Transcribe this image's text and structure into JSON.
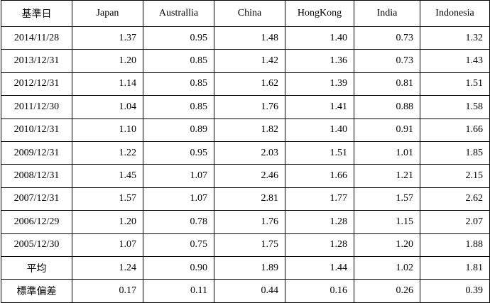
{
  "table": {
    "header": [
      "基準日",
      "Japan",
      "Australlia",
      "China",
      "HongKong",
      "India",
      "Indonesia"
    ],
    "rows": [
      [
        "2014/11/28",
        "1.37",
        "0.95",
        "1.48",
        "1.40",
        "0.73",
        "1.32"
      ],
      [
        "2013/12/31",
        "1.20",
        "0.85",
        "1.42",
        "1.36",
        "0.73",
        "1.43"
      ],
      [
        "2012/12/31",
        "1.14",
        "0.85",
        "1.62",
        "1.39",
        "0.81",
        "1.51"
      ],
      [
        "2011/12/30",
        "1.04",
        "0.85",
        "1.76",
        "1.41",
        "0.88",
        "1.58"
      ],
      [
        "2010/12/31",
        "1.10",
        "0.89",
        "1.82",
        "1.40",
        "0.91",
        "1.66"
      ],
      [
        "2009/12/31",
        "1.22",
        "0.95",
        "2.03",
        "1.51",
        "1.01",
        "1.85"
      ],
      [
        "2008/12/31",
        "1.45",
        "1.07",
        "2.46",
        "1.66",
        "1.21",
        "2.15"
      ],
      [
        "2007/12/31",
        "1.57",
        "1.07",
        "2.81",
        "1.77",
        "1.57",
        "2.62"
      ],
      [
        "2006/12/29",
        "1.20",
        "0.78",
        "1.76",
        "1.28",
        "1.15",
        "2.07"
      ],
      [
        "2005/12/30",
        "1.07",
        "0.75",
        "1.75",
        "1.28",
        "1.20",
        "1.88"
      ],
      [
        "平均",
        "1.24",
        "0.90",
        "1.89",
        "1.44",
        "1.02",
        "1.81"
      ],
      [
        "標準偏差",
        "0.17",
        "0.11",
        "0.44",
        "0.16",
        "0.26",
        "0.39"
      ]
    ]
  }
}
